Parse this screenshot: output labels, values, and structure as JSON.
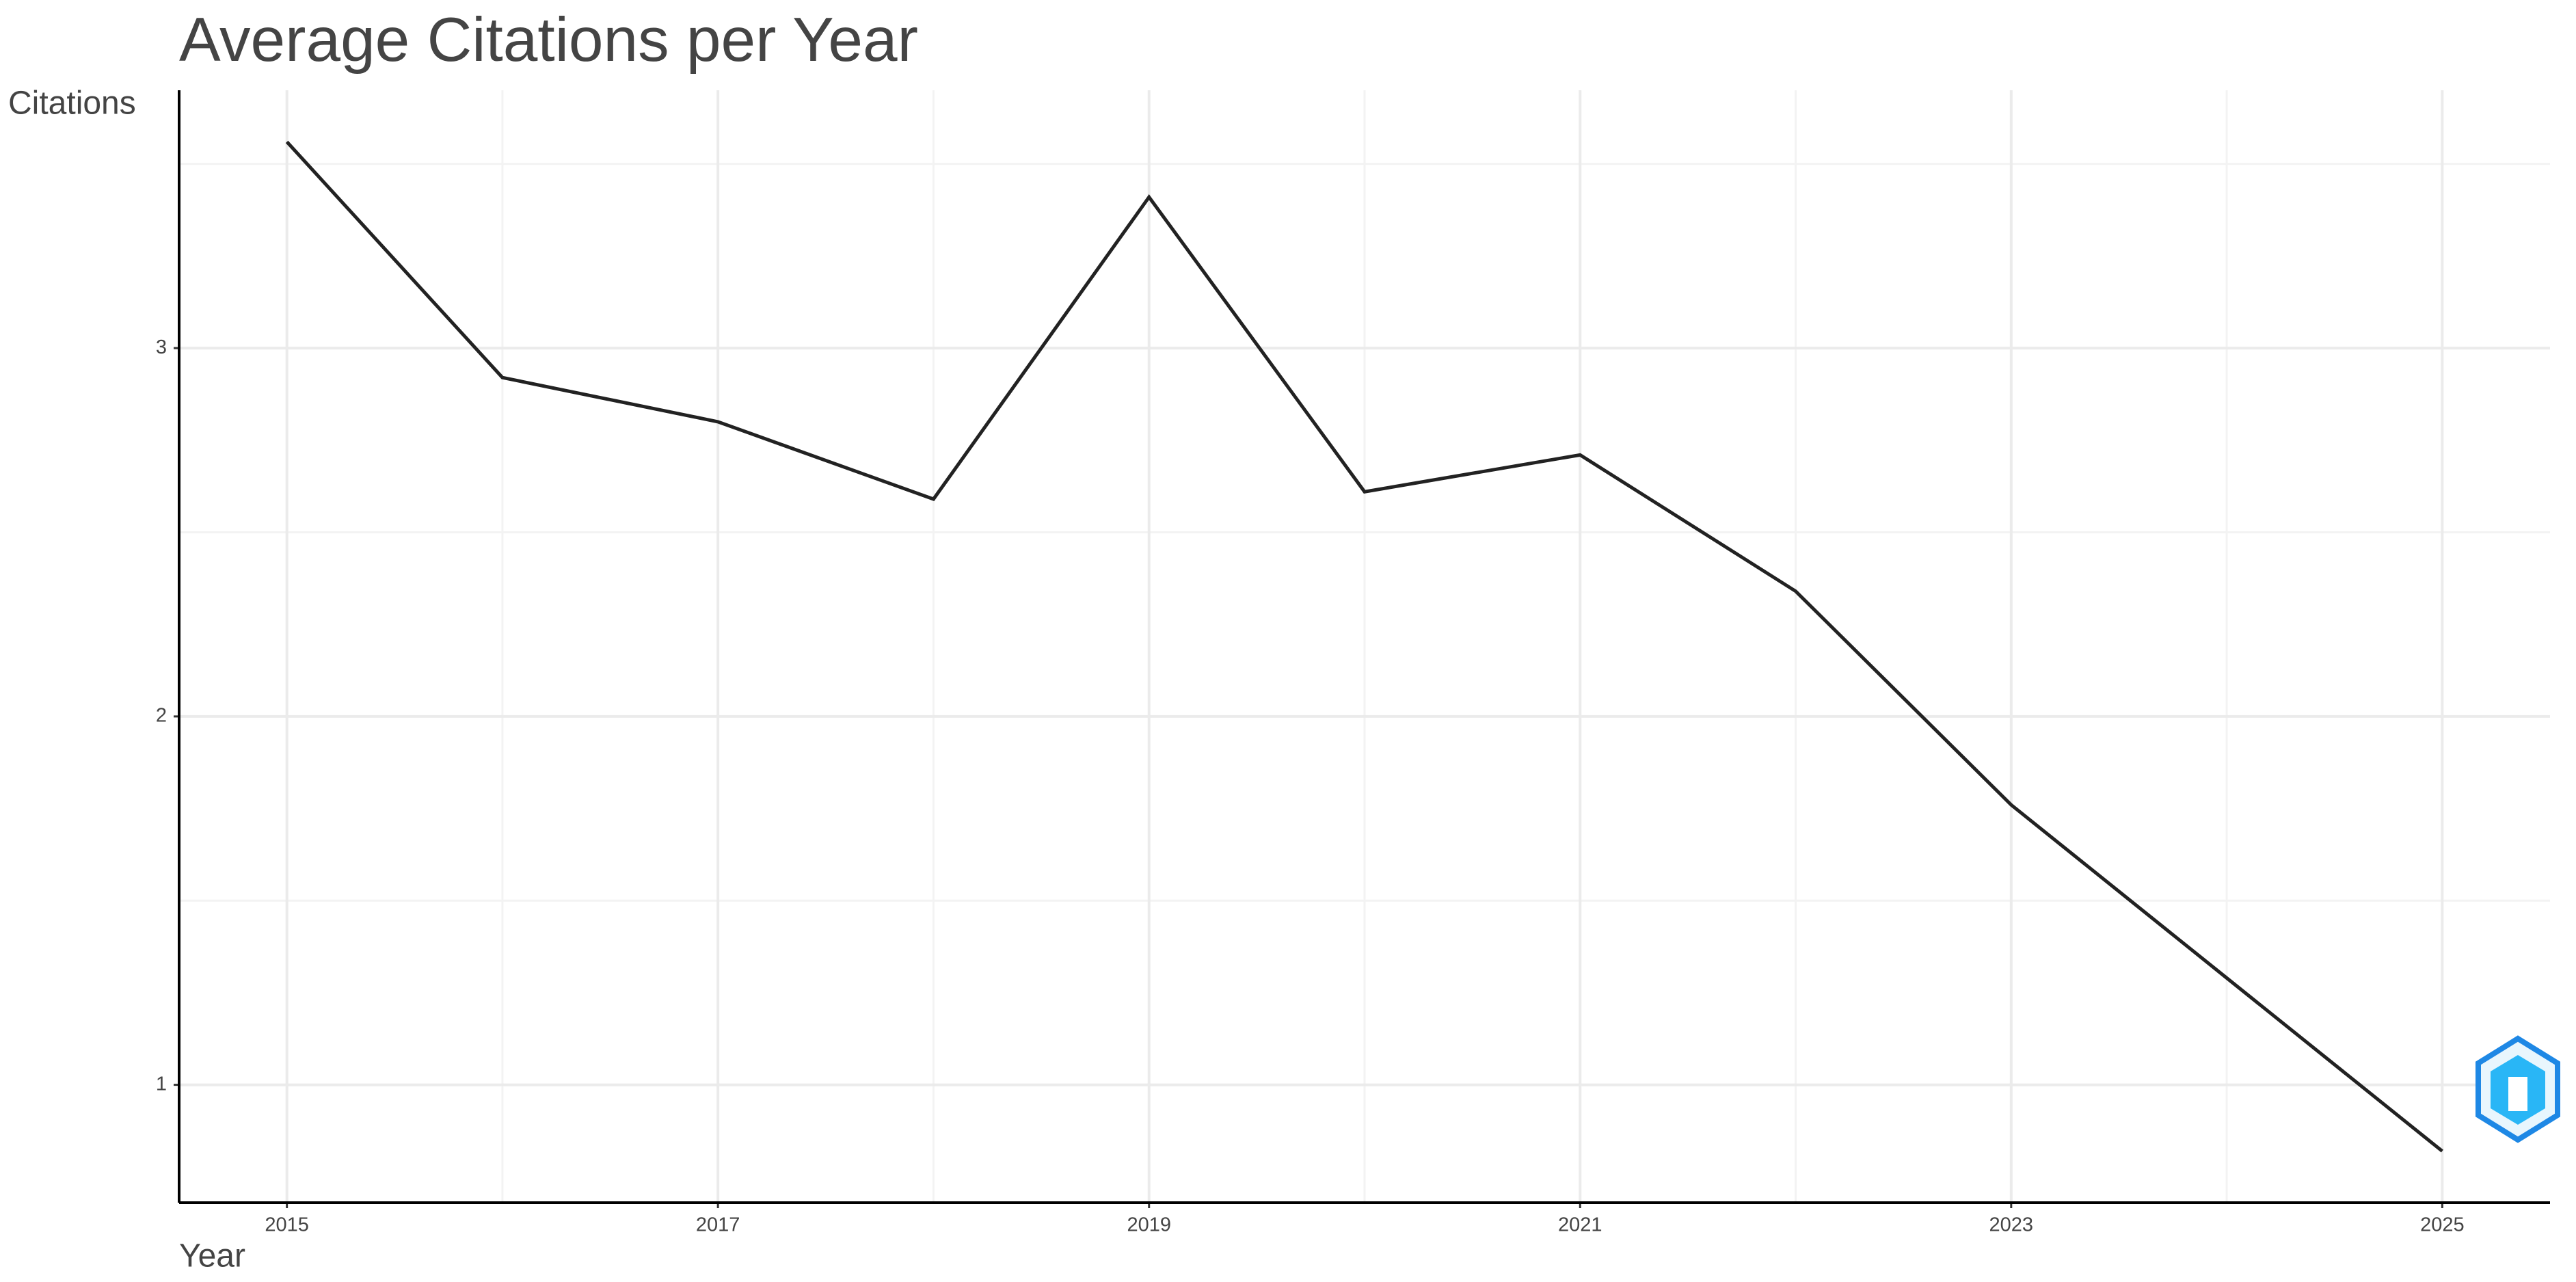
{
  "chart_data": {
    "type": "line",
    "title": "Average Citations per Year",
    "y_label": "Citations",
    "x_label": "Year",
    "x": [
      2015,
      2016,
      2017,
      2018,
      2019,
      2020,
      2021,
      2022,
      2023,
      2024,
      2025
    ],
    "series": [
      {
        "name": "Citations",
        "color": "#222222",
        "values": [
          3.56,
          2.92,
          2.8,
          2.59,
          3.41,
          2.61,
          2.71,
          2.34,
          1.76,
          1.29,
          0.82
        ]
      }
    ],
    "xlim": [
      2014.5,
      2025.5
    ],
    "xticks": [
      2015,
      2017,
      2019,
      2021,
      2023,
      2025
    ],
    "ylim": [
      0.68,
      3.7
    ],
    "yticks": [
      1,
      2,
      3
    ],
    "grid": true
  }
}
